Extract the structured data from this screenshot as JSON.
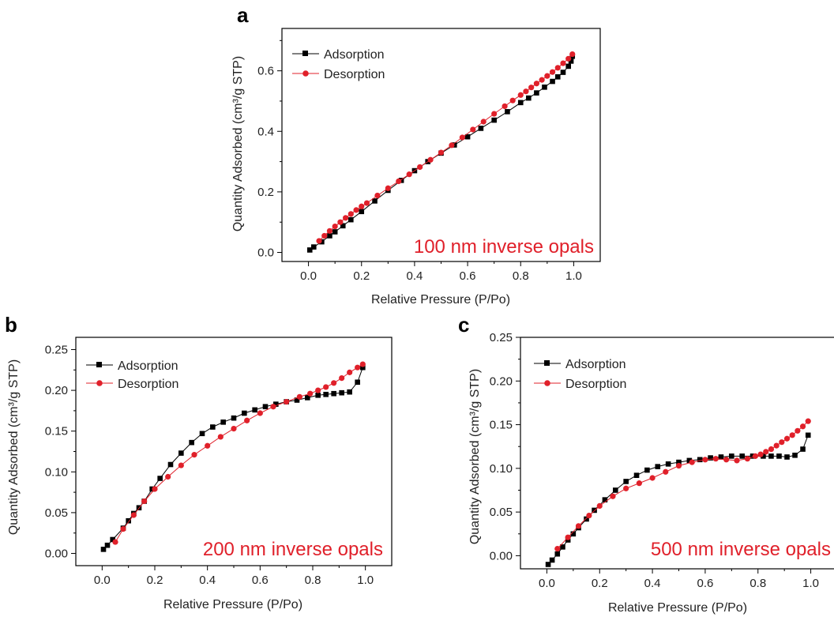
{
  "colors": {
    "adsorption": "#000000",
    "desorption": "#e0202a",
    "annotation": "#e0202a"
  },
  "chart_data": [
    {
      "type": "line",
      "panel": "a",
      "xlabel": "Relative Pressure (P/Po)",
      "ylabel": "Quantity Adsorbed (cm³/g STP)",
      "xlim": [
        -0.1,
        1.1
      ],
      "ylim": [
        -0.03,
        0.74
      ],
      "xticks": [
        0.0,
        0.2,
        0.4,
        0.6,
        0.8,
        1.0
      ],
      "xtick_labels": [
        "0.0",
        "0.2",
        "0.4",
        "0.6",
        "0.8",
        "1.0"
      ],
      "yticks": [
        0.0,
        0.2,
        0.4,
        0.6
      ],
      "ytick_labels": [
        "0.0",
        "0.2",
        "0.4",
        "0.6"
      ],
      "legend": "top-left",
      "grid": false,
      "annotation": "100 nm inverse opals",
      "series": [
        {
          "name": "Adsorption",
          "marker": "square",
          "x": [
            0.005,
            0.02,
            0.05,
            0.08,
            0.1,
            0.13,
            0.16,
            0.2,
            0.25,
            0.3,
            0.35,
            0.4,
            0.45,
            0.5,
            0.55,
            0.6,
            0.65,
            0.7,
            0.75,
            0.8,
            0.83,
            0.86,
            0.89,
            0.92,
            0.94,
            0.96,
            0.98,
            0.99,
            0.995
          ],
          "y": [
            0.008,
            0.018,
            0.035,
            0.055,
            0.068,
            0.088,
            0.108,
            0.135,
            0.17,
            0.205,
            0.238,
            0.27,
            0.3,
            0.328,
            0.355,
            0.382,
            0.41,
            0.437,
            0.465,
            0.495,
            0.51,
            0.527,
            0.546,
            0.565,
            0.58,
            0.595,
            0.615,
            0.632,
            0.648
          ]
        },
        {
          "name": "Desorption",
          "marker": "circle",
          "x": [
            0.995,
            0.98,
            0.96,
            0.94,
            0.92,
            0.9,
            0.88,
            0.86,
            0.84,
            0.82,
            0.8,
            0.77,
            0.74,
            0.7,
            0.66,
            0.62,
            0.58,
            0.54,
            0.5,
            0.46,
            0.42,
            0.38,
            0.34,
            0.3,
            0.26,
            0.22,
            0.2,
            0.18,
            0.16,
            0.14,
            0.12,
            0.1,
            0.08,
            0.06,
            0.04
          ],
          "y": [
            0.655,
            0.64,
            0.625,
            0.61,
            0.596,
            0.583,
            0.57,
            0.558,
            0.545,
            0.532,
            0.52,
            0.502,
            0.483,
            0.458,
            0.432,
            0.406,
            0.38,
            0.354,
            0.33,
            0.306,
            0.282,
            0.258,
            0.235,
            0.212,
            0.188,
            0.163,
            0.152,
            0.14,
            0.127,
            0.114,
            0.1,
            0.086,
            0.071,
            0.055,
            0.038
          ]
        }
      ]
    },
    {
      "type": "line",
      "panel": "b",
      "xlabel": "Relative Pressure (P/Po)",
      "ylabel": "Quantity Adsorbed (cm³/g STP)",
      "xlim": [
        -0.1,
        1.1
      ],
      "ylim": [
        -0.015,
        0.265
      ],
      "xticks": [
        0.0,
        0.2,
        0.4,
        0.6,
        0.8,
        1.0
      ],
      "xtick_labels": [
        "0.0",
        "0.2",
        "0.4",
        "0.6",
        "0.8",
        "1.0"
      ],
      "yticks": [
        0.0,
        0.05,
        0.1,
        0.15,
        0.2,
        0.25
      ],
      "ytick_labels": [
        "0.00",
        "0.05",
        "0.10",
        "0.15",
        "0.20",
        "0.25"
      ],
      "legend": "top-left",
      "grid": false,
      "annotation": "200 nm inverse opals",
      "series": [
        {
          "name": "Adsorption",
          "marker": "square",
          "x": [
            0.005,
            0.02,
            0.04,
            0.08,
            0.1,
            0.12,
            0.14,
            0.16,
            0.19,
            0.22,
            0.26,
            0.3,
            0.34,
            0.38,
            0.42,
            0.46,
            0.5,
            0.54,
            0.58,
            0.62,
            0.66,
            0.7,
            0.74,
            0.78,
            0.82,
            0.85,
            0.88,
            0.91,
            0.94,
            0.97,
            0.99
          ],
          "y": [
            0.005,
            0.01,
            0.017,
            0.031,
            0.04,
            0.049,
            0.056,
            0.064,
            0.079,
            0.092,
            0.109,
            0.123,
            0.136,
            0.147,
            0.155,
            0.161,
            0.166,
            0.172,
            0.176,
            0.18,
            0.183,
            0.186,
            0.188,
            0.191,
            0.194,
            0.195,
            0.196,
            0.197,
            0.198,
            0.21,
            0.228
          ]
        },
        {
          "name": "Desorption",
          "marker": "circle",
          "x": [
            0.99,
            0.97,
            0.94,
            0.91,
            0.88,
            0.85,
            0.82,
            0.79,
            0.75,
            0.7,
            0.65,
            0.6,
            0.55,
            0.5,
            0.45,
            0.4,
            0.35,
            0.3,
            0.25,
            0.2,
            0.16,
            0.12,
            0.08,
            0.05
          ],
          "y": [
            0.232,
            0.228,
            0.222,
            0.215,
            0.209,
            0.204,
            0.2,
            0.196,
            0.192,
            0.186,
            0.18,
            0.172,
            0.163,
            0.153,
            0.143,
            0.132,
            0.121,
            0.108,
            0.094,
            0.079,
            0.064,
            0.047,
            0.03,
            0.014
          ]
        }
      ]
    },
    {
      "type": "line",
      "panel": "c",
      "xlabel": "Relative Pressure (P/Po)",
      "ylabel": "Quantity Adsorbed (cm³/g STP)",
      "xlim": [
        -0.1,
        1.1
      ],
      "ylim": [
        -0.015,
        0.25
      ],
      "xticks": [
        0.0,
        0.2,
        0.4,
        0.6,
        0.8,
        1.0
      ],
      "xtick_labels": [
        "0.0",
        "0.2",
        "0.4",
        "0.6",
        "0.8",
        "1.0"
      ],
      "yticks": [
        0.0,
        0.05,
        0.1,
        0.15,
        0.2,
        0.25
      ],
      "ytick_labels": [
        "0.00",
        "0.05",
        "0.10",
        "0.15",
        "0.20",
        "0.25"
      ],
      "legend": "top-left",
      "grid": false,
      "annotation": "500 nm inverse opals",
      "series": [
        {
          "name": "Adsorption",
          "marker": "square",
          "x": [
            0.005,
            0.02,
            0.04,
            0.06,
            0.08,
            0.1,
            0.12,
            0.15,
            0.18,
            0.22,
            0.26,
            0.3,
            0.34,
            0.38,
            0.42,
            0.46,
            0.5,
            0.54,
            0.58,
            0.62,
            0.66,
            0.7,
            0.74,
            0.78,
            0.82,
            0.85,
            0.88,
            0.91,
            0.94,
            0.97,
            0.99
          ],
          "y": [
            -0.01,
            -0.005,
            0.002,
            0.01,
            0.018,
            0.025,
            0.032,
            0.042,
            0.052,
            0.064,
            0.075,
            0.085,
            0.092,
            0.098,
            0.102,
            0.105,
            0.107,
            0.109,
            0.11,
            0.112,
            0.113,
            0.114,
            0.114,
            0.114,
            0.114,
            0.114,
            0.114,
            0.113,
            0.115,
            0.122,
            0.138
          ]
        },
        {
          "name": "Desorption",
          "marker": "circle",
          "x": [
            0.99,
            0.97,
            0.95,
            0.93,
            0.91,
            0.89,
            0.87,
            0.85,
            0.83,
            0.81,
            0.79,
            0.76,
            0.72,
            0.68,
            0.64,
            0.6,
            0.55,
            0.5,
            0.45,
            0.4,
            0.35,
            0.3,
            0.25,
            0.2,
            0.16,
            0.12,
            0.08,
            0.04
          ],
          "y": [
            0.154,
            0.148,
            0.143,
            0.138,
            0.134,
            0.13,
            0.126,
            0.122,
            0.119,
            0.116,
            0.114,
            0.111,
            0.109,
            0.11,
            0.111,
            0.11,
            0.107,
            0.103,
            0.096,
            0.089,
            0.083,
            0.077,
            0.068,
            0.057,
            0.046,
            0.034,
            0.021,
            0.008
          ]
        }
      ]
    }
  ]
}
